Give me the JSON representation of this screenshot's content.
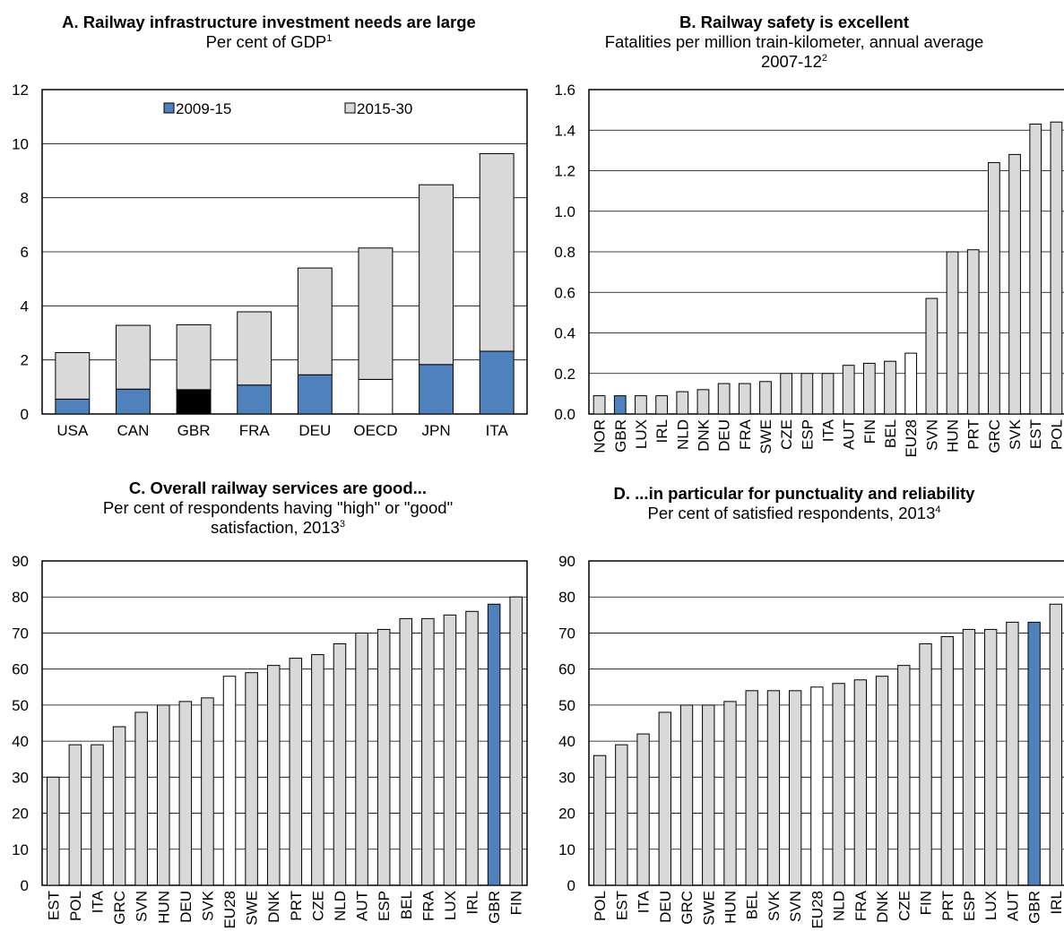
{
  "chart_data": [
    {
      "id": "A",
      "type": "bar",
      "stacked": true,
      "title": "A. Railway infrastructure investment needs are large",
      "subtitle": "Per cent of GDP",
      "note": "1",
      "categories": [
        "USA",
        "CAN",
        "GBR",
        "FRA",
        "DEU",
        "OECD",
        "JPN",
        "ITA"
      ],
      "series": [
        {
          "name": "2009-15",
          "values": [
            0.55,
            0.92,
            0.9,
            1.07,
            1.45,
            1.28,
            1.83,
            2.32
          ],
          "color": "#4F81BD"
        },
        {
          "name": "2015-30",
          "values": [
            1.72,
            2.36,
            2.4,
            2.71,
            3.95,
            4.86,
            6.65,
            7.31
          ],
          "color": "#D9D9D9"
        }
      ],
      "highlight": {
        "GBR": {
          "2009-15": "#000000"
        },
        "OECD": {
          "2009-15": "#ffffff"
        }
      },
      "ylim": [
        0,
        12
      ],
      "yticks": [
        0,
        2,
        4,
        6,
        8,
        10,
        12
      ],
      "legend": "top",
      "grid": true
    },
    {
      "id": "B",
      "type": "bar",
      "title": "B. Railway safety is excellent",
      "subtitle": "Fatalities per million train-kilometer, annual average",
      "subtitle2": "2007-12",
      "note": "2",
      "categories": [
        "NOR",
        "GBR",
        "LUX",
        "IRL",
        "NLD",
        "DNK",
        "DEU",
        "FRA",
        "SWE",
        "CZE",
        "ESP",
        "ITA",
        "AUT",
        "FIN",
        "BEL",
        "EU28",
        "SVN",
        "HUN",
        "PRT",
        "GRC",
        "SVK",
        "EST",
        "POL"
      ],
      "values": [
        0.09,
        0.09,
        0.09,
        0.09,
        0.11,
        0.12,
        0.15,
        0.15,
        0.16,
        0.2,
        0.2,
        0.2,
        0.24,
        0.25,
        0.26,
        0.3,
        0.57,
        0.8,
        0.81,
        1.24,
        1.28,
        1.43,
        1.44
      ],
      "colors": {
        "default": "#D9D9D9",
        "GBR": "#4F81BD",
        "EU28": "#ffffff"
      },
      "ylim": [
        0,
        1.6
      ],
      "yticks": [
        0.0,
        0.2,
        0.4,
        0.6,
        0.8,
        1.0,
        1.2,
        1.4,
        1.6
      ],
      "grid": true
    },
    {
      "id": "C",
      "type": "bar",
      "title": "C. Overall railway services are good...",
      "subtitle": "Per cent of respondents having \"high\" or \"good\"",
      "subtitle2": "satisfaction, 2013",
      "note": "3",
      "categories": [
        "EST",
        "POL",
        "ITA",
        "GRC",
        "SVN",
        "HUN",
        "DEU",
        "SVK",
        "EU28",
        "SWE",
        "DNK",
        "PRT",
        "CZE",
        "NLD",
        "AUT",
        "ESP",
        "BEL",
        "FRA",
        "LUX",
        "IRL",
        "GBR",
        "FIN"
      ],
      "values": [
        30,
        39,
        39,
        44,
        48,
        50,
        51,
        52,
        58,
        59,
        61,
        63,
        64,
        67,
        70,
        71,
        74,
        74,
        75,
        76,
        78,
        80
      ],
      "colors": {
        "default": "#D9D9D9",
        "GBR": "#4F81BD",
        "EU28": "#ffffff"
      },
      "ylim": [
        0,
        90
      ],
      "yticks": [
        0,
        10,
        20,
        30,
        40,
        50,
        60,
        70,
        80,
        90
      ],
      "grid": true
    },
    {
      "id": "D",
      "type": "bar",
      "title": "D. ...in particular for punctuality and reliability",
      "subtitle": "Per cent of satisfied respondents, 2013",
      "note": "4",
      "categories": [
        "POL",
        "EST",
        "ITA",
        "DEU",
        "GRC",
        "SWE",
        "HUN",
        "BEL",
        "SVK",
        "SVN",
        "EU28",
        "NLD",
        "FRA",
        "DNK",
        "CZE",
        "FIN",
        "PRT",
        "ESP",
        "LUX",
        "AUT",
        "GBR",
        "IRL"
      ],
      "values": [
        36,
        39,
        42,
        48,
        50,
        50,
        51,
        54,
        54,
        54,
        55,
        56,
        57,
        58,
        61,
        67,
        69,
        71,
        71,
        73,
        73,
        78
      ],
      "colors": {
        "default": "#D9D9D9",
        "GBR": "#4F81BD",
        "EU28": "#ffffff"
      },
      "ylim": [
        0,
        90
      ],
      "yticks": [
        0,
        10,
        20,
        30,
        40,
        50,
        60,
        70,
        80,
        90
      ],
      "grid": true
    }
  ]
}
